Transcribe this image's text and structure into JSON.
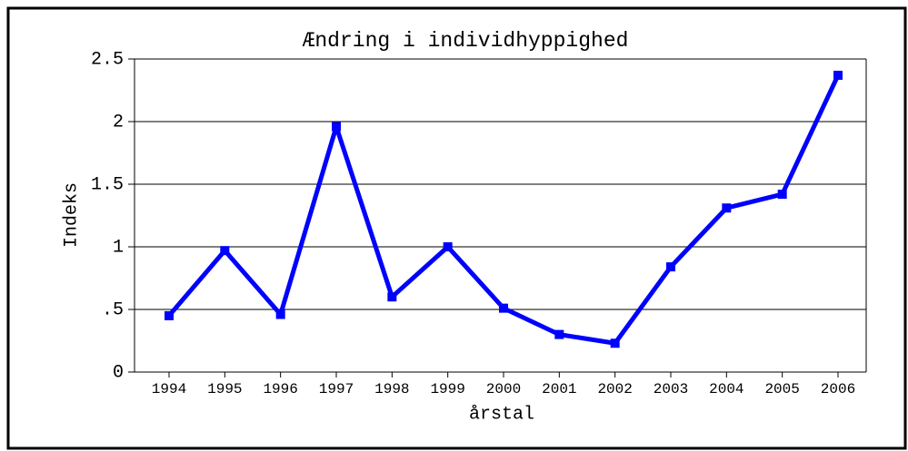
{
  "chart_data": {
    "type": "line",
    "title": "Ændring i individhyppighed",
    "x_label": "årstal",
    "y_label": "Indeks",
    "categories": [
      "1994",
      "1995",
      "1996",
      "1997",
      "1998",
      "1999",
      "2000",
      "2001",
      "2002",
      "2003",
      "2004",
      "2005",
      "2006"
    ],
    "series": [
      {
        "name": "Indeks",
        "color": "#0000ff",
        "values": [
          0.45,
          0.97,
          0.46,
          1.96,
          0.6,
          1.0,
          0.51,
          0.3,
          0.23,
          0.84,
          1.31,
          1.42,
          2.37
        ]
      }
    ],
    "ylim": [
      0,
      2.5
    ],
    "yticks": [
      0,
      {
        "value": 0.5,
        "label": ".5"
      },
      1,
      1.5,
      2,
      2.5
    ],
    "grid": true
  }
}
